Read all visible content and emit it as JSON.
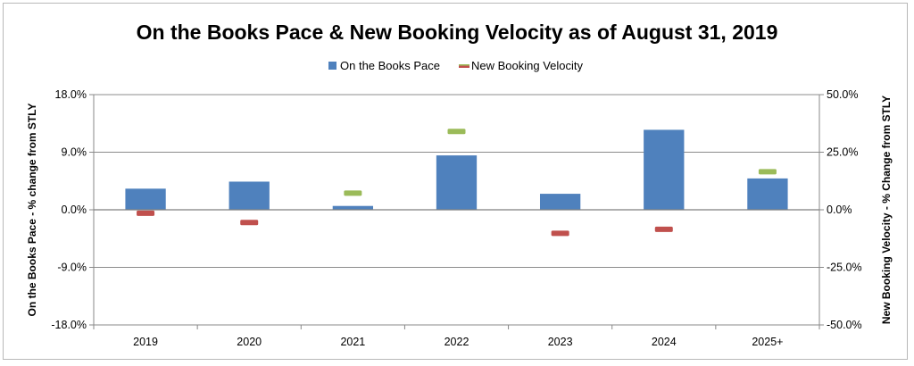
{
  "chart_data": {
    "type": "bar",
    "title": "On the Books Pace & New Booking Velocity as of August 31, 2019",
    "categories": [
      "2019",
      "2020",
      "2021",
      "2022",
      "2023",
      "2024",
      "2025+"
    ],
    "series": [
      {
        "name": "On the Books Pace",
        "axis": "left",
        "mark": "bar",
        "color": "#4f81bd",
        "values": [
          3.3,
          4.4,
          0.6,
          8.5,
          2.5,
          12.5,
          4.9
        ]
      },
      {
        "name": "New Booking Velocity",
        "axis": "right",
        "mark": "dash",
        "values": [
          -1.5,
          -5.5,
          7.2,
          34.0,
          -10.2,
          -8.5,
          16.5
        ],
        "positive_color": "#9bbb59",
        "negative_color": "#c0504d"
      }
    ],
    "y_left": {
      "label": "On the Books Pace - % change from STLY",
      "range": [
        -18.0,
        18.0
      ],
      "ticks": [
        "18.0%",
        "9.0%",
        "0.0%",
        "-9.0%",
        "-18.0%"
      ]
    },
    "y_right": {
      "label": "New Booking Velocity - % Change from STLY",
      "range": [
        -50.0,
        50.0
      ],
      "ticks": [
        "50.0%",
        "25.0%",
        "0.0%",
        "-25.0%",
        "-50.0%"
      ]
    },
    "grid": true,
    "legend_position": "top"
  }
}
